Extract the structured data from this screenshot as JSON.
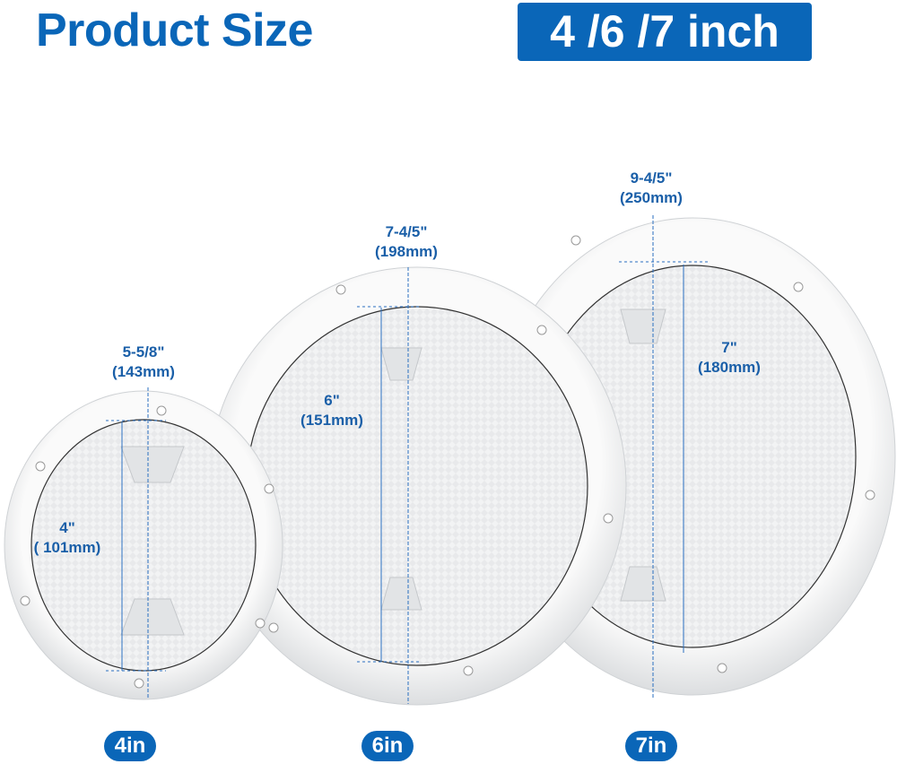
{
  "header": {
    "title": "Product Size",
    "badge": "4 /6 /7 inch"
  },
  "colors": {
    "brand_blue": "#0a66b8",
    "dimension_text": "#1a5fa8"
  },
  "products": [
    {
      "size_label": "4in",
      "outer_inch": "5-5/8\"",
      "outer_mm": "(143mm)",
      "inner_inch": "4\"",
      "inner_mm": "( 101mm)"
    },
    {
      "size_label": "6in",
      "outer_inch": "7-4/5\"",
      "outer_mm": "(198mm)",
      "inner_inch": "6\"",
      "inner_mm": "(151mm)"
    },
    {
      "size_label": "7in",
      "outer_inch": "9-4/5\"",
      "outer_mm": "(250mm)",
      "inner_inch": "7\"",
      "inner_mm": "(180mm)"
    }
  ]
}
